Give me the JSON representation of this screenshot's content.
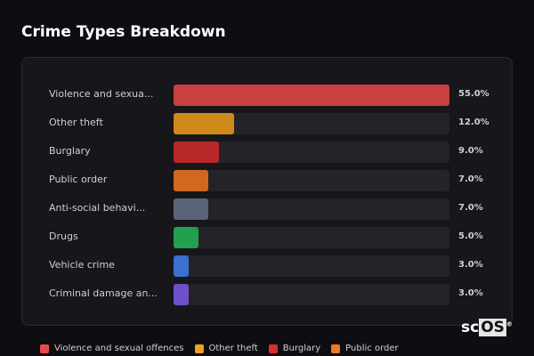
{
  "title": "Crime Types Breakdown",
  "chart_data": {
    "type": "bar",
    "orientation": "horizontal",
    "title": "Crime Types Breakdown",
    "categories": [
      "Violence and sexua...",
      "Other theft",
      "Burglary",
      "Public order",
      "Anti-social behavi...",
      "Drugs",
      "Vehicle crime",
      "Criminal damage an..."
    ],
    "values": [
      55.0,
      12.0,
      9.0,
      7.0,
      7.0,
      5.0,
      3.0,
      3.0
    ],
    "value_labels": [
      "55.0%",
      "12.0%",
      "9.0%",
      "7.0%",
      "7.0%",
      "5.0%",
      "3.0%",
      "3.0%"
    ],
    "colors": [
      "#c94040",
      "#d08a1a",
      "#b82828",
      "#d06820",
      "#5a6478",
      "#22a050",
      "#3a70d0",
      "#7050c8"
    ],
    "xlim": [
      0,
      55
    ],
    "legend": [
      {
        "label": "Violence and sexual offences",
        "color": "#e84a50"
      },
      {
        "label": "Other theft",
        "color": "#f0a020"
      },
      {
        "label": "Burglary",
        "color": "#d83030"
      },
      {
        "label": "Public order",
        "color": "#f07820"
      }
    ],
    "legend_position": "bottom"
  },
  "logo": {
    "text_a": "sc",
    "text_b": "OS",
    "mark": "®"
  }
}
